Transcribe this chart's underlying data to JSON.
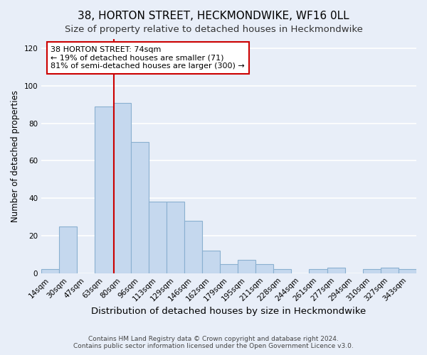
{
  "title": "38, HORTON STREET, HECKMONDWIKE, WF16 0LL",
  "subtitle": "Size of property relative to detached houses in Heckmondwike",
  "xlabel": "Distribution of detached houses by size in Heckmondwike",
  "ylabel": "Number of detached properties",
  "categories": [
    "14sqm",
    "30sqm",
    "47sqm",
    "63sqm",
    "80sqm",
    "96sqm",
    "113sqm",
    "129sqm",
    "146sqm",
    "162sqm",
    "179sqm",
    "195sqm",
    "211sqm",
    "228sqm",
    "244sqm",
    "261sqm",
    "277sqm",
    "294sqm",
    "310sqm",
    "327sqm",
    "343sqm"
  ],
  "values": [
    2,
    25,
    0,
    89,
    91,
    70,
    38,
    38,
    28,
    12,
    5,
    7,
    5,
    2,
    0,
    2,
    3,
    0,
    2,
    3,
    2
  ],
  "bar_color": "#c5d8ee",
  "bar_edge_color": "#8ab0d0",
  "ylim": [
    0,
    125
  ],
  "yticks": [
    0,
    20,
    40,
    60,
    80,
    100,
    120
  ],
  "annotation_text_line1": "38 HORTON STREET: 74sqm",
  "annotation_text_line2": "← 19% of detached houses are smaller (71)",
  "annotation_text_line3": "81% of semi-detached houses are larger (300) →",
  "vline_x_index": 4,
  "vline_color": "#cc0000",
  "footer_line1": "Contains HM Land Registry data © Crown copyright and database right 2024.",
  "footer_line2": "Contains public sector information licensed under the Open Government Licence v3.0.",
  "background_color": "#e8eef8",
  "grid_color": "#ffffff",
  "title_fontsize": 11,
  "subtitle_fontsize": 9.5,
  "xlabel_fontsize": 9.5,
  "ylabel_fontsize": 8.5,
  "tick_fontsize": 7.5,
  "annotation_fontsize": 8,
  "footer_fontsize": 6.5
}
